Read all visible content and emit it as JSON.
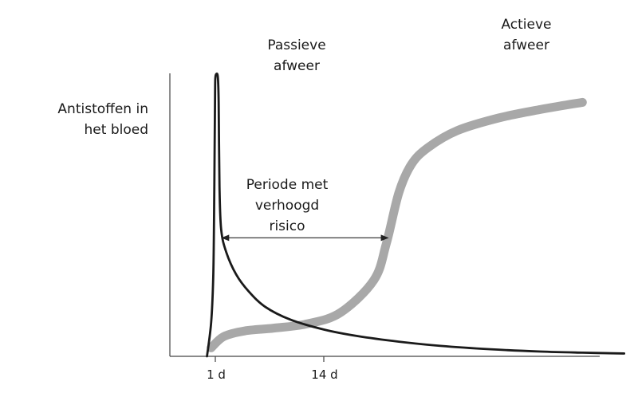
{
  "chart_data": {
    "type": "line",
    "ylabel": [
      "Antistoffen in",
      "het bloed"
    ],
    "x_ticks": [
      {
        "value": 1,
        "label": "1 d"
      },
      {
        "value": 14,
        "label": "14 d"
      }
    ],
    "series": [
      {
        "name": [
          "Passieve",
          "afweer"
        ],
        "color": "#1a1a1a",
        "points": [
          [
            0.0,
            0.0
          ],
          [
            0.5,
            0.12
          ],
          [
            0.75,
            0.28
          ],
          [
            0.85,
            0.5
          ],
          [
            0.92,
            0.75
          ],
          [
            0.97,
            0.93
          ],
          [
            1.0,
            0.985
          ],
          [
            1.1,
            1.0
          ],
          [
            1.3,
            0.99
          ],
          [
            1.4,
            0.9
          ],
          [
            1.5,
            0.6
          ],
          [
            1.7,
            0.45
          ],
          [
            2.3,
            0.37
          ],
          [
            3.5,
            0.29
          ],
          [
            5.0,
            0.23
          ],
          [
            7.0,
            0.175
          ],
          [
            10.0,
            0.13
          ],
          [
            14.0,
            0.095
          ],
          [
            18.0,
            0.072
          ],
          [
            23.0,
            0.052
          ],
          [
            28.0,
            0.037
          ],
          [
            34.0,
            0.025
          ],
          [
            40.0,
            0.017
          ],
          [
            45.0,
            0.013
          ],
          [
            50.0,
            0.01
          ]
        ]
      },
      {
        "name": [
          "Actieve",
          "afweer"
        ],
        "color": "#a8a8a8",
        "points": [
          [
            0.5,
            0.03
          ],
          [
            2.0,
            0.07
          ],
          [
            4.5,
            0.09
          ],
          [
            8.0,
            0.1
          ],
          [
            12.0,
            0.115
          ],
          [
            16.0,
            0.155
          ],
          [
            20.0,
            0.27
          ],
          [
            21.5,
            0.4
          ],
          [
            23.0,
            0.58
          ],
          [
            24.5,
            0.68
          ],
          [
            26.5,
            0.74
          ],
          [
            30.0,
            0.8
          ],
          [
            35.0,
            0.845
          ],
          [
            40.0,
            0.875
          ],
          [
            45.0,
            0.9
          ]
        ]
      }
    ],
    "annotation": {
      "text": [
        "Periode met",
        "verhoogd",
        "risico"
      ],
      "arrow_from_x": 1.7,
      "arrow_to_x": 21.8,
      "arrow_y": 0.42
    }
  }
}
